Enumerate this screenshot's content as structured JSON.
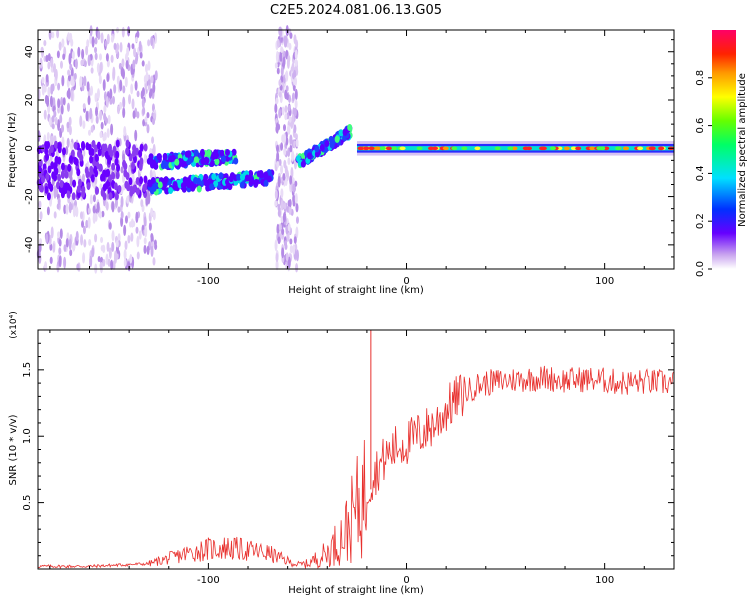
{
  "title": "C2E5.2024.081.06.13.G05",
  "chart_data": [
    {
      "type": "heatmap",
      "title": "C2E5.2024.081.06.13.G05",
      "xlabel": "Height of straight line (km)",
      "ylabel": "Frequency (Hz)",
      "xlim": [
        -186,
        135
      ],
      "ylim": [
        -50,
        49
      ],
      "xticks": [
        -100,
        0,
        100
      ],
      "yticks": [
        -40,
        -20,
        0,
        20,
        40
      ],
      "grid": false,
      "colorbar": {
        "label": "Normalized spectral amplitude",
        "range": [
          0,
          1
        ],
        "ticks": [
          0.0,
          0.2,
          0.4,
          0.6,
          0.8
        ],
        "colormap": "rainbow (white-violet-blue-cyan-green-yellow-orange-red-magenta)"
      },
      "description": "Main signal trace: scattered noise from -186 to -130 km, two faint bands near -5 and -15 Hz from -130 to -65 km, noise band at -63 km, rising trace from -10 to +8 Hz between -55 and -28 km, then a strong narrow line near 0 Hz from -25 to 135 km.",
      "ridge": {
        "x": [
          -130,
          -110,
          -90,
          -75,
          -67,
          -55,
          -45,
          -35,
          -30,
          -25,
          -15,
          0,
          40,
          80,
          110,
          135
        ],
        "y": [
          -15,
          -14,
          -11,
          -10,
          -8,
          -5,
          -1,
          4,
          7,
          1,
          0,
          0,
          0,
          0,
          -1,
          -1
        ]
      }
    },
    {
      "type": "line",
      "xlabel": "Height of straight line (km)",
      "ylabel": "SNR (10 * v/v)",
      "y_multiplier": "(x10⁴)",
      "xlim": [
        -186,
        135
      ],
      "ylim": [
        0,
        1.8
      ],
      "xticks": [
        -100,
        0,
        100
      ],
      "yticks": [
        0.5,
        1.0,
        1.5
      ],
      "grid": false,
      "series": [
        {
          "name": "SNR",
          "color": "#e8302d",
          "x": [
            -186,
            -160,
            -130,
            -120,
            -110,
            -100,
            -90,
            -80,
            -70,
            -60,
            -55,
            -50,
            -45,
            -40,
            -35,
            -30,
            -25,
            -20,
            -15,
            -10,
            -5,
            0,
            5,
            10,
            15,
            20,
            25,
            30,
            35,
            40,
            50,
            60,
            70,
            80,
            90,
            100,
            110,
            120,
            135
          ],
          "y": [
            0.02,
            0.02,
            0.04,
            0.08,
            0.12,
            0.15,
            0.16,
            0.14,
            0.12,
            0.06,
            0.03,
            0.04,
            0.08,
            0.12,
            0.2,
            0.3,
            0.45,
            0.6,
            0.75,
            0.85,
            0.92,
            0.95,
            1.0,
            1.05,
            1.1,
            1.2,
            1.28,
            1.33,
            1.38,
            1.4,
            1.42,
            1.43,
            1.44,
            1.42,
            1.43,
            1.42,
            1.4,
            1.41,
            1.4
          ]
        }
      ],
      "annotations": [
        {
          "x": -18,
          "y": 1.8,
          "label": "spike"
        }
      ]
    }
  ]
}
